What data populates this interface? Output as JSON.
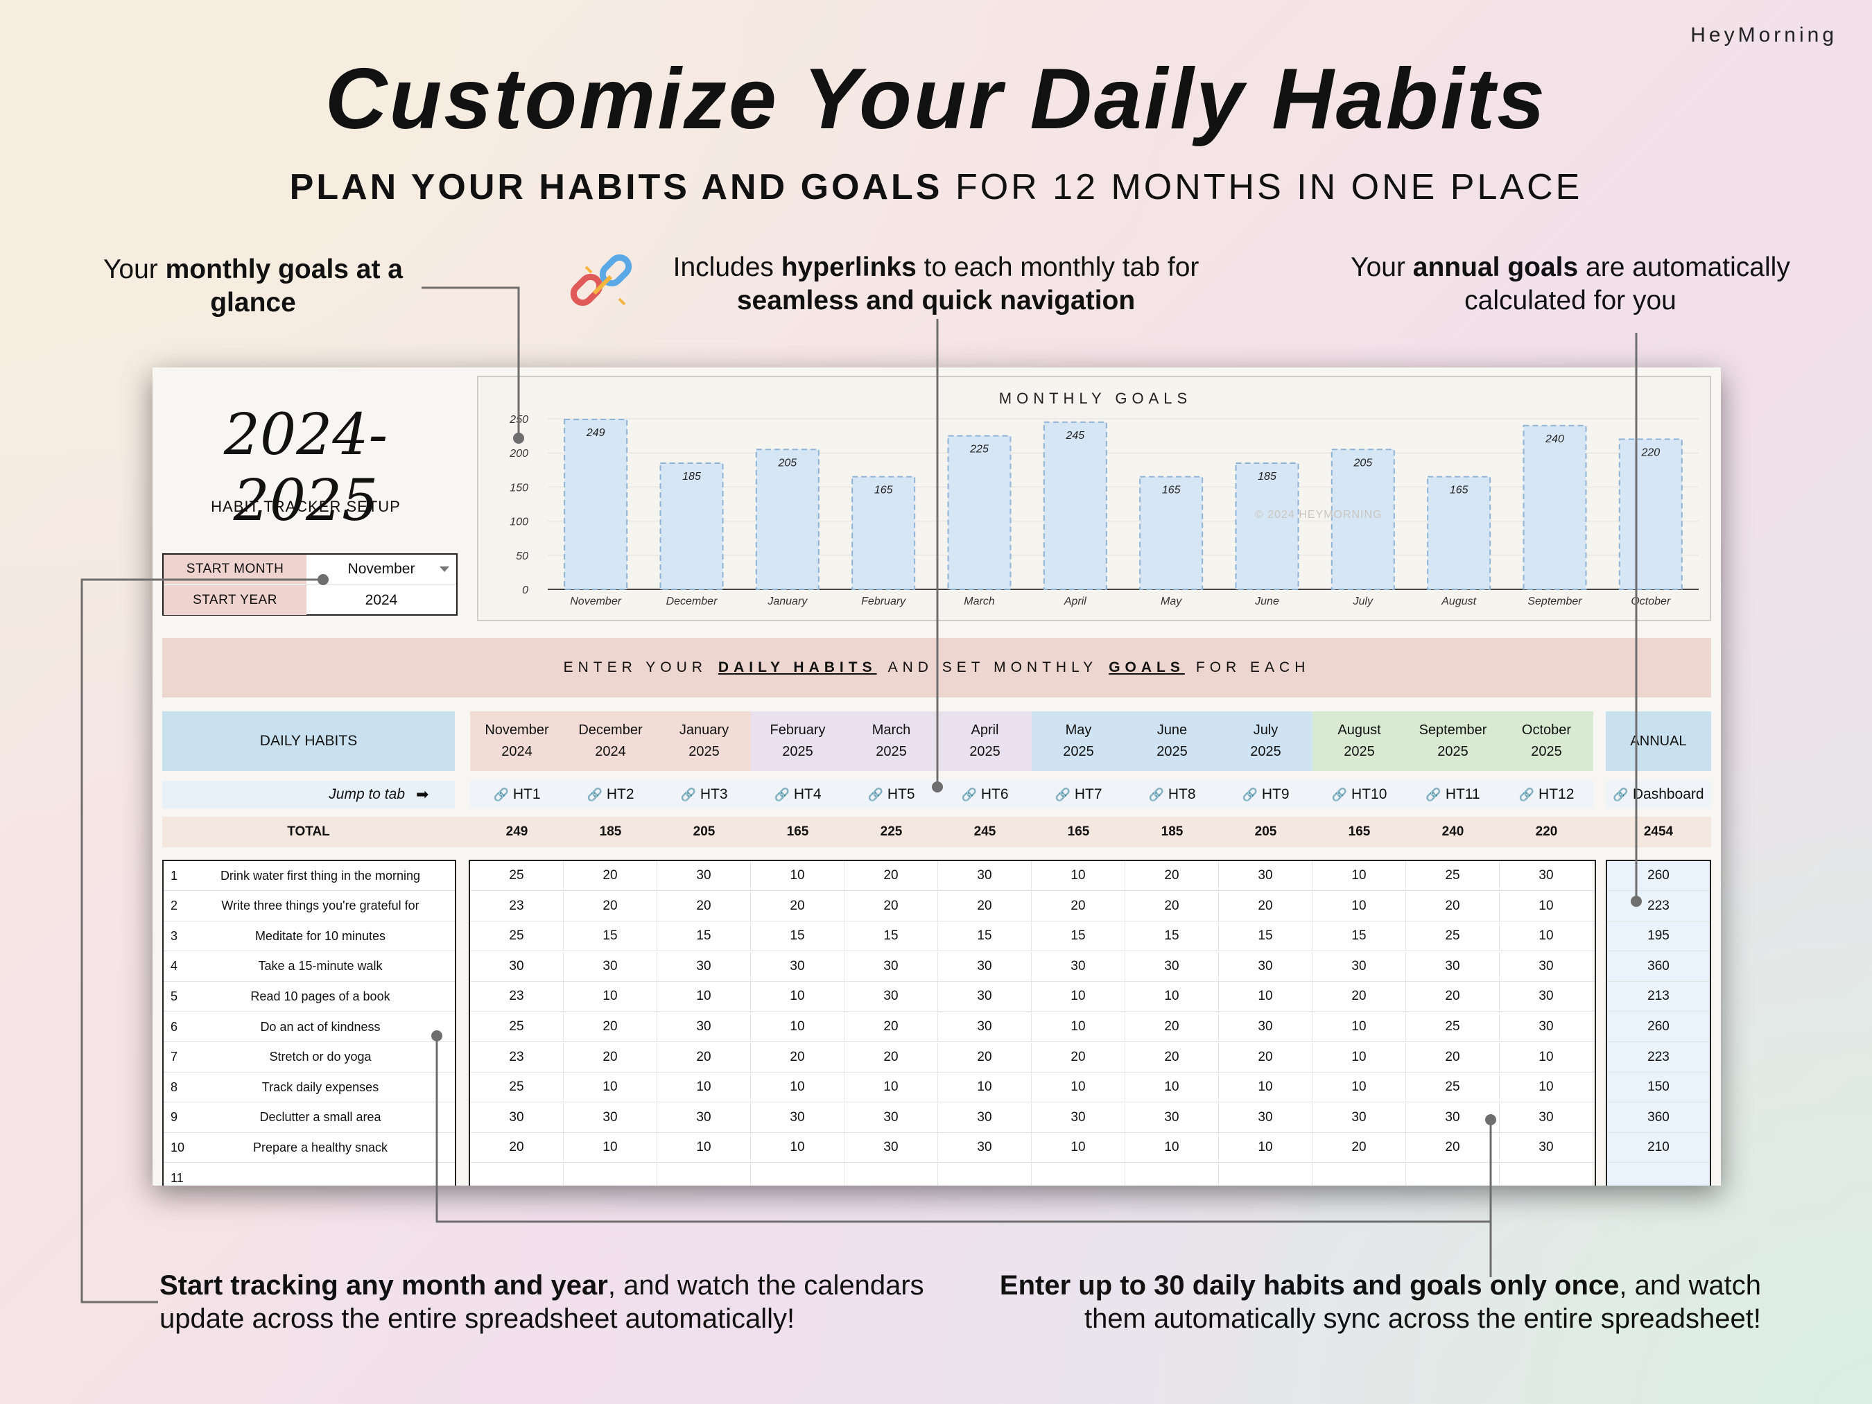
{
  "brand": "HeyMorning",
  "title": "Customize Your Daily Habits",
  "subtitle": {
    "bold": "PLAN YOUR HABITS AND GOALS",
    "rest": "FOR 12 MONTHS IN ONE PLACE"
  },
  "callouts": {
    "monthly_goals": {
      "pre": "Your ",
      "bold": "monthly goals at a glance",
      "post": ""
    },
    "hyperlinks": {
      "pre": "Includes ",
      "bold1": "hyperlinks",
      "mid": " to each monthly tab for ",
      "bold2": "seamless and quick navigation"
    },
    "annual_goals": {
      "pre": "Your ",
      "bold": "annual goals",
      "post": " are automatically calculated for you"
    },
    "start_tracking": {
      "bold": "Start tracking any month and year",
      "post": ", and watch the calendars update across the entire spreadsheet automatically!"
    },
    "enter_habits": {
      "bold": "Enter up to 30 daily habits and goals only once",
      "post": ", and watch them automatically sync across the entire spreadsheet!"
    }
  },
  "sheet": {
    "year_title": "2024-2025",
    "setup_label": "HABIT TRACKER SETUP",
    "start_month_label": "START MONTH",
    "start_month_value": "November",
    "start_year_label": "START YEAR",
    "start_year_value": "2024",
    "watermark": "© 2024 HEYMORNING",
    "banner": {
      "w1": "ENTER YOUR",
      "b1": "DAILY HABITS",
      "w2": "AND SET MONTHLY",
      "b2": "GOALS",
      "w3": "FOR EACH"
    },
    "daily_habits_header": "DAILY HABITS",
    "annual_header": "ANNUAL",
    "jump_label": "Jump to tab",
    "jump_arrow": "➡",
    "dashboard_link": "Dashboard",
    "total_label": "TOTAL",
    "annual_total": "2454",
    "months": [
      {
        "name": "November",
        "year": "2024",
        "tab": "HT1",
        "total": "249",
        "color": "#f2ddd6"
      },
      {
        "name": "December",
        "year": "2024",
        "tab": "HT2",
        "total": "185",
        "color": "#f2ddd6"
      },
      {
        "name": "January",
        "year": "2025",
        "tab": "HT3",
        "total": "205",
        "color": "#f2ddd6"
      },
      {
        "name": "February",
        "year": "2025",
        "tab": "HT4",
        "total": "165",
        "color": "#e9e2ee"
      },
      {
        "name": "March",
        "year": "2025",
        "tab": "HT5",
        "total": "225",
        "color": "#e9e2ee"
      },
      {
        "name": "April",
        "year": "2025",
        "tab": "HT6",
        "total": "245",
        "color": "#e9e2ee"
      },
      {
        "name": "May",
        "year": "2025",
        "tab": "HT7",
        "total": "165",
        "color": "#cfe3f2"
      },
      {
        "name": "June",
        "year": "2025",
        "tab": "HT8",
        "total": "185",
        "color": "#cfe3f2"
      },
      {
        "name": "July",
        "year": "2025",
        "tab": "HT9",
        "total": "205",
        "color": "#cfe3f2"
      },
      {
        "name": "August",
        "year": "2025",
        "tab": "HT10",
        "total": "165",
        "color": "#d9ead3"
      },
      {
        "name": "September",
        "year": "2025",
        "tab": "HT11",
        "total": "240",
        "color": "#d9ead3"
      },
      {
        "name": "October",
        "year": "2025",
        "tab": "HT12",
        "total": "220",
        "color": "#d9ead3"
      }
    ],
    "habits": [
      {
        "num": "1",
        "name": "Drink water first thing in the morning",
        "goals": [
          "25",
          "20",
          "30",
          "10",
          "20",
          "30",
          "10",
          "20",
          "30",
          "10",
          "25",
          "30"
        ],
        "annual": "260"
      },
      {
        "num": "2",
        "name": "Write three things you're grateful for",
        "goals": [
          "23",
          "20",
          "20",
          "20",
          "20",
          "20",
          "20",
          "20",
          "20",
          "10",
          "20",
          "10"
        ],
        "annual": "223"
      },
      {
        "num": "3",
        "name": "Meditate for 10 minutes",
        "goals": [
          "25",
          "15",
          "15",
          "15",
          "15",
          "15",
          "15",
          "15",
          "15",
          "15",
          "25",
          "10"
        ],
        "annual": "195"
      },
      {
        "num": "4",
        "name": "Take a 15-minute walk",
        "goals": [
          "30",
          "30",
          "30",
          "30",
          "30",
          "30",
          "30",
          "30",
          "30",
          "30",
          "30",
          "30"
        ],
        "annual": "360"
      },
      {
        "num": "5",
        "name": "Read 10 pages of a book",
        "goals": [
          "23",
          "10",
          "10",
          "10",
          "30",
          "30",
          "10",
          "10",
          "10",
          "20",
          "20",
          "30"
        ],
        "annual": "213"
      },
      {
        "num": "6",
        "name": "Do an act of kindness",
        "goals": [
          "25",
          "20",
          "30",
          "10",
          "20",
          "30",
          "10",
          "20",
          "30",
          "10",
          "25",
          "30"
        ],
        "annual": "260"
      },
      {
        "num": "7",
        "name": "Stretch or do yoga",
        "goals": [
          "23",
          "20",
          "20",
          "20",
          "20",
          "20",
          "20",
          "20",
          "20",
          "10",
          "20",
          "10"
        ],
        "annual": "223"
      },
      {
        "num": "8",
        "name": "Track daily expenses",
        "goals": [
          "25",
          "10",
          "10",
          "10",
          "10",
          "10",
          "10",
          "10",
          "10",
          "10",
          "25",
          "10"
        ],
        "annual": "150"
      },
      {
        "num": "9",
        "name": "Declutter a small area",
        "goals": [
          "30",
          "30",
          "30",
          "30",
          "30",
          "30",
          "30",
          "30",
          "30",
          "30",
          "30",
          "30"
        ],
        "annual": "360"
      },
      {
        "num": "10",
        "name": "Prepare a healthy snack",
        "goals": [
          "20",
          "10",
          "10",
          "10",
          "30",
          "30",
          "10",
          "10",
          "10",
          "20",
          "20",
          "30"
        ],
        "annual": "210"
      },
      {
        "num": "11",
        "name": "",
        "goals": [
          "",
          "",
          "",
          "",
          "",
          "",
          "",
          "",
          "",
          "",
          "",
          ""
        ],
        "annual": ""
      }
    ]
  },
  "chart_data": {
    "type": "bar",
    "title": "MONTHLY GOALS",
    "categories": [
      "November",
      "December",
      "January",
      "February",
      "March",
      "April",
      "May",
      "June",
      "July",
      "August",
      "September",
      "October"
    ],
    "values": [
      249,
      185,
      205,
      165,
      225,
      245,
      165,
      185,
      205,
      165,
      240,
      220
    ],
    "yticks": [
      "0",
      "50",
      "100",
      "150",
      "200",
      "250"
    ],
    "ylim": [
      0,
      250
    ],
    "grid": true,
    "bar_color": "#d6e6f5",
    "bar_border": "#8fb3d6"
  }
}
